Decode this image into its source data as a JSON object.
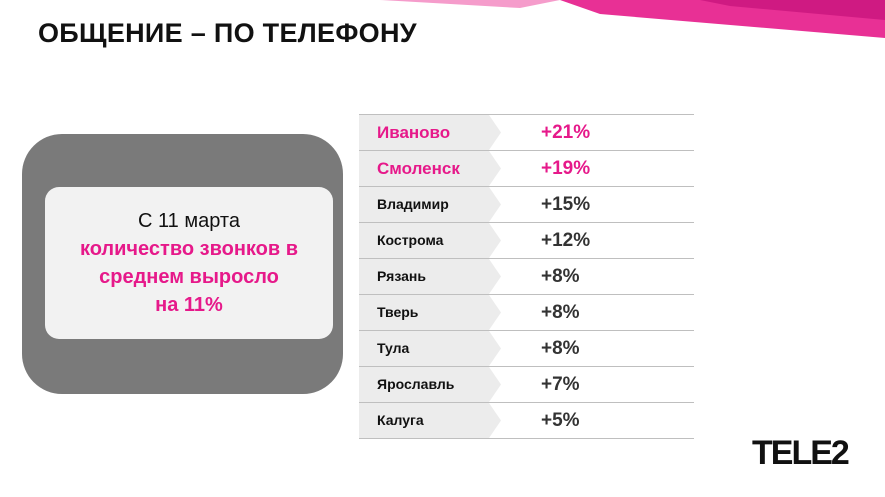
{
  "slide": {
    "title": "ОБЩЕНИЕ – ПО ТЕЛЕФОНУ",
    "accent_color": "#e6198a"
  },
  "callout": {
    "line1": "С 11 марта",
    "line2": "количество звонков в",
    "line3": "среднем выросло",
    "line4": "на 11%"
  },
  "table": {
    "rows": [
      {
        "city": "Иваново",
        "value": "+21%",
        "highlight": true
      },
      {
        "city": "Смоленск",
        "value": "+19%",
        "highlight": true
      },
      {
        "city": "Владимир",
        "value": "+15%",
        "highlight": false
      },
      {
        "city": "Кострома",
        "value": "+12%",
        "highlight": false
      },
      {
        "city": "Рязань",
        "value": "+8%",
        "highlight": false
      },
      {
        "city": "Тверь",
        "value": "+8%",
        "highlight": false
      },
      {
        "city": "Тула",
        "value": "+8%",
        "highlight": false
      },
      {
        "city": "Ярославль",
        "value": "+7%",
        "highlight": false
      },
      {
        "city": "Калуга",
        "value": "+5%",
        "highlight": false
      }
    ]
  },
  "logo": {
    "text": "TELE2",
    "icon": "tele2-logo"
  }
}
